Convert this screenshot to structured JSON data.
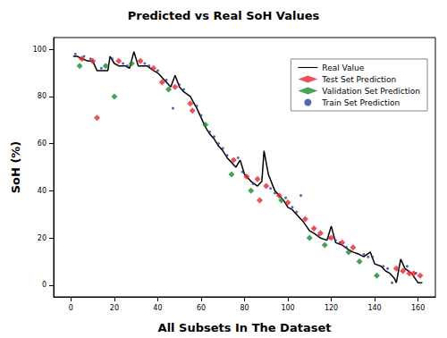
{
  "chart_data": {
    "type": "scatter",
    "title": "Predicted vs Real SoH Values",
    "x_label": "All Subsets In The Dataset",
    "y_label": "SoH (%)",
    "xlim": [
      -8,
      168
    ],
    "xticks": [
      0,
      20,
      40,
      60,
      80,
      100,
      120,
      140,
      160
    ],
    "ylim": [
      -5,
      105
    ],
    "yticks": [
      0,
      20,
      40,
      60,
      80,
      100
    ],
    "grid": false,
    "legend": "upper right",
    "series": [
      {
        "name": "Real Value",
        "type": "line",
        "color": "#000000",
        "line_style": "solid",
        "x": [
          1,
          3,
          5,
          8,
          10,
          12,
          15,
          17,
          18,
          20,
          22,
          25,
          27,
          29,
          31,
          33,
          35,
          38,
          40,
          42,
          44,
          46,
          48,
          50,
          52,
          55,
          58,
          60,
          62,
          64,
          66,
          68,
          70,
          72,
          74,
          76,
          78,
          80,
          83,
          86,
          88,
          89,
          91,
          94,
          96,
          98,
          100,
          102,
          104,
          107,
          110,
          112,
          115,
          118,
          120,
          122,
          125,
          128,
          130,
          133,
          135,
          138,
          140,
          143,
          145,
          147,
          149,
          150,
          152,
          154,
          157,
          160,
          162
        ],
        "values": [
          97,
          97,
          96,
          95,
          95,
          91,
          91,
          91,
          97,
          94,
          93,
          93,
          92,
          99,
          93,
          93,
          93,
          91,
          90,
          88,
          86,
          84,
          89,
          84,
          82,
          80,
          75,
          71,
          67,
          64,
          62,
          59,
          57,
          54,
          52,
          50,
          53,
          47,
          44,
          42,
          44,
          57,
          47,
          40,
          38,
          36,
          33,
          32,
          30,
          27,
          23,
          22,
          20,
          19,
          25,
          18,
          17,
          15,
          14,
          13,
          12,
          14,
          9,
          8,
          6,
          5,
          3,
          1,
          11,
          7,
          5,
          1,
          1
        ]
      },
      {
        "name": "Test Set Prediction",
        "type": "scatter",
        "color": "#e8262e",
        "marker": "diamond",
        "x": [
          5,
          10,
          12,
          22,
          32,
          38,
          42,
          48,
          55,
          56,
          75,
          81,
          86,
          87,
          90,
          96,
          100,
          108,
          112,
          115,
          120,
          125,
          130,
          150,
          153,
          156,
          158,
          161
        ],
        "values": [
          96,
          95,
          71,
          95,
          95,
          92,
          86,
          84,
          77,
          74,
          53,
          46,
          45,
          36,
          42,
          38,
          35,
          28,
          24,
          22,
          20,
          18,
          16,
          7,
          6,
          5,
          5,
          4
        ]
      },
      {
        "name": "Validation Set Prediction",
        "type": "scatter",
        "color": "#1a8a2a",
        "marker": "diamond",
        "x": [
          4,
          16,
          20,
          28,
          45,
          62,
          74,
          83,
          97,
          110,
          117,
          128,
          133,
          141
        ],
        "values": [
          93,
          93,
          80,
          94,
          83,
          68,
          47,
          40,
          36,
          20,
          17,
          14,
          10,
          4
        ]
      },
      {
        "name": "Train Set Prediction",
        "type": "scatter",
        "color": "#2b3f9e",
        "marker": "circle",
        "x": [
          2,
          6,
          9,
          14,
          19,
          24,
          26,
          34,
          36,
          40,
          44,
          47,
          50,
          52,
          58,
          60,
          64,
          66,
          68,
          70,
          72,
          77,
          79,
          84,
          92,
          94,
          99,
          102,
          104,
          106,
          114,
          119,
          122,
          124,
          127,
          135,
          137,
          139,
          144,
          146,
          148,
          155,
          159
        ],
        "values": [
          98,
          97,
          96,
          92,
          96,
          94,
          93,
          94,
          93,
          91,
          87,
          75,
          85,
          83,
          76,
          72,
          65,
          63,
          60,
          58,
          55,
          54,
          48,
          43,
          41,
          39,
          37,
          33,
          31,
          38,
          21,
          20,
          19,
          18,
          16,
          13,
          12,
          12,
          8,
          7,
          1,
          8,
          5
        ]
      }
    ]
  }
}
